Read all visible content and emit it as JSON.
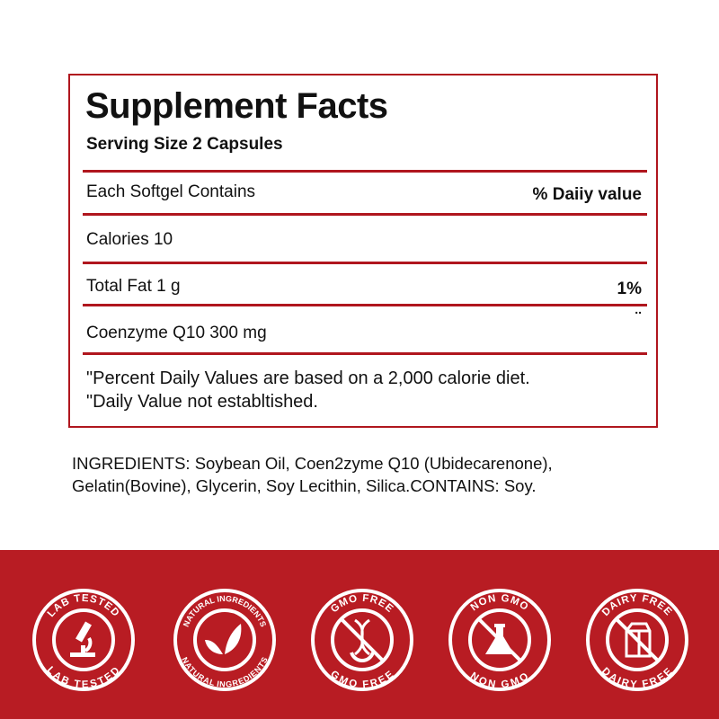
{
  "facts": {
    "title": "Supplement Facts",
    "serving_size": "Serving Size 2 Capsules",
    "header_left": "Each Softgel Contains",
    "header_right": "% Daiiy value",
    "rows": [
      {
        "label": "Calories 10",
        "value": ""
      },
      {
        "label": "Total Fat 1 g",
        "value": "1%"
      },
      {
        "label": "Coenzyme Q10 300 mg",
        "value": ".."
      }
    ],
    "notes": [
      "\"Percent Daily Values are based on a 2,000 calorie diet.",
      "\"Daily Value not establtished."
    ]
  },
  "ingredients": {
    "line1": "INGREDIENTS: Soybean Oil, Coen2zyme Q10 (Ubidecarenone),",
    "line2": "Gelatin(Bovine), Glycerin, Soy Lecithin, Silica.CONTAINS: Soy."
  },
  "badges": [
    {
      "icon": "microscope-icon",
      "top": "LAB TESTED",
      "bottom": "LAB TESTED"
    },
    {
      "icon": "leaves-icon",
      "top": "NATURAL INGREDIENTS",
      "bottom": "NATURAL INGREDIENTS"
    },
    {
      "icon": "dna-icon",
      "top": "GMO FREE",
      "bottom": "GMO FREE"
    },
    {
      "icon": "flask-icon",
      "top": "NON GMO",
      "bottom": "NON GMO"
    },
    {
      "icon": "milk-carton-icon",
      "top": "DAIRY FREE",
      "bottom": "DAIRY FREE"
    }
  ],
  "colors": {
    "accent": "#b81c23",
    "text": "#111111",
    "background": "#ffffff"
  }
}
